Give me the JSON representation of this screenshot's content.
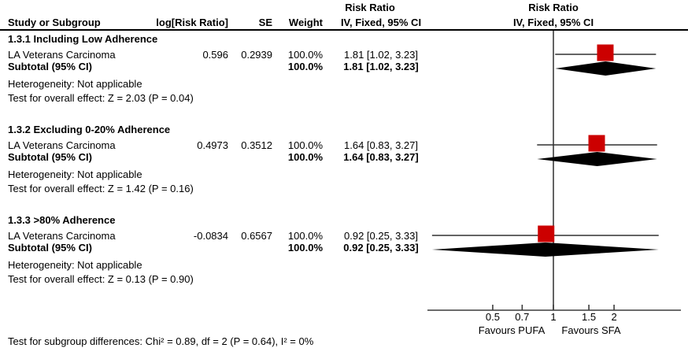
{
  "header": {
    "stats_effect": "Risk Ratio",
    "stats_method": "IV, Fixed, 95% CI",
    "plot_effect": "Risk Ratio",
    "plot_method": "IV, Fixed, 95% CI",
    "col_study": "Study or Subgroup",
    "col_logrr": "log[Risk Ratio]",
    "col_se": "SE",
    "col_weight": "Weight"
  },
  "groups": [
    {
      "header": "1.3.1 Including Low Adherence",
      "study": {
        "name": "LA Veterans Carcinoma",
        "log_rr": "0.596",
        "se": "0.2939",
        "weight": "100.0%",
        "ci_text": "1.81 [1.02, 3.23]"
      },
      "subtotal": {
        "label": "Subtotal (95% CI)",
        "weight": "100.0%",
        "ci_text": "1.81 [1.02, 3.23]"
      },
      "heterogeneity": "Heterogeneity: Not applicable",
      "overall_effect": "Test for overall effect: Z = 2.03 (P = 0.04)"
    },
    {
      "header": "1.3.2 Excluding 0-20% Adherence",
      "study": {
        "name": "LA Veterans Carcinoma",
        "log_rr": "0.4973",
        "se": "0.3512",
        "weight": "100.0%",
        "ci_text": "1.64 [0.83, 3.27]"
      },
      "subtotal": {
        "label": "Subtotal (95% CI)",
        "weight": "100.0%",
        "ci_text": "1.64 [0.83, 3.27]"
      },
      "heterogeneity": "Heterogeneity: Not applicable",
      "overall_effect": "Test for overall effect: Z = 1.42 (P = 0.16)"
    },
    {
      "header": "1.3.3 >80% Adherence",
      "study": {
        "name": "LA Veterans Carcinoma",
        "log_rr": "-0.0834",
        "se": "0.6567",
        "weight": "100.0%",
        "ci_text": "0.92 [0.25, 3.33]"
      },
      "subtotal": {
        "label": "Subtotal (95% CI)",
        "weight": "100.0%",
        "ci_text": "0.92 [0.25, 3.33]"
      },
      "heterogeneity": "Heterogeneity: Not applicable",
      "overall_effect": "Test for overall effect: Z = 0.13 (P = 0.90)"
    }
  ],
  "footer": "Test for subgroup differences: Chi² = 0.89, df = 2 (P = 0.64), I² = 0%",
  "colors": {
    "marker_red": "#CC0000",
    "diamond_black": "#000000",
    "plot_line": "#3C3C3C",
    "ci_line": "#303030"
  },
  "chart_data": {
    "type": "forest",
    "effect_measure": "Risk Ratio",
    "model": "IV, Fixed, 95% CI",
    "x_scale": "log",
    "x_ticks": [
      "0.5",
      "0.7",
      "1",
      "1.5",
      "2"
    ],
    "null_value": 1,
    "favours_left": "Favours PUFA",
    "favours_right": "Favours SFA",
    "series": [
      {
        "subgroup": "1.3.1 Including Low Adherence",
        "study": {
          "name": "LA Veterans Carcinoma",
          "rr": 1.81,
          "ci_low": 1.02,
          "ci_high": 3.23,
          "weight_pct": 100.0
        },
        "subtotal": {
          "rr": 1.81,
          "ci_low": 1.02,
          "ci_high": 3.23
        }
      },
      {
        "subgroup": "1.3.2 Excluding 0-20% Adherence",
        "study": {
          "name": "LA Veterans Carcinoma",
          "rr": 1.64,
          "ci_low": 0.83,
          "ci_high": 3.27,
          "weight_pct": 100.0
        },
        "subtotal": {
          "rr": 1.64,
          "ci_low": 0.83,
          "ci_high": 3.27
        }
      },
      {
        "subgroup": "1.3.3 >80% Adherence",
        "study": {
          "name": "LA Veterans Carcinoma",
          "rr": 0.92,
          "ci_low": 0.25,
          "ci_high": 3.33,
          "weight_pct": 100.0
        },
        "subtotal": {
          "rr": 0.92,
          "ci_low": 0.25,
          "ci_high": 3.33
        }
      }
    ]
  }
}
